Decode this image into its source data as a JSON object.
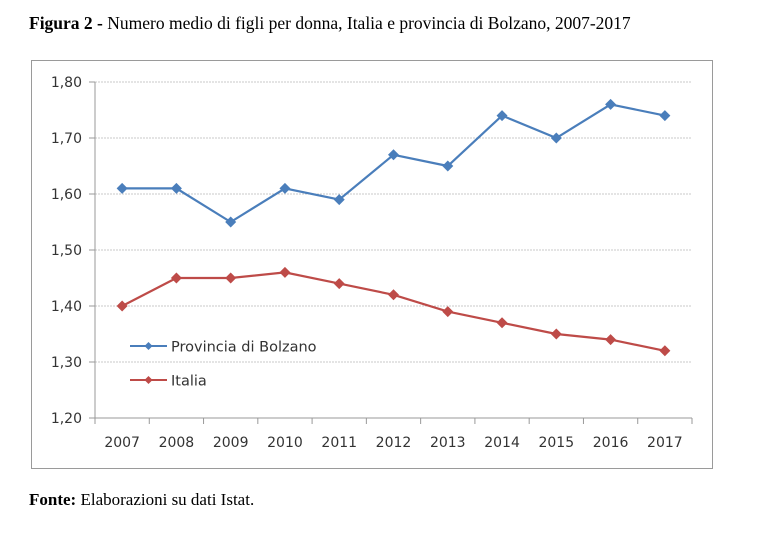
{
  "figure": {
    "title_bold": "Figura 2 -",
    "title_rest": " Numero medio di figli per donna, Italia e provincia di Bolzano, 2007-2017",
    "source_bold": "Fonte:",
    "source_rest": " Elaborazioni su dati Istat."
  },
  "chart_data": {
    "type": "line",
    "title": "Numero medio di figli per donna, Italia e provincia di Bolzano, 2007-2017",
    "xlabel": "",
    "ylabel": "",
    "categories": [
      "2007",
      "2008",
      "2009",
      "2010",
      "2011",
      "2012",
      "2013",
      "2014",
      "2015",
      "2016",
      "2017"
    ],
    "ylim": [
      1.2,
      1.8
    ],
    "yticks": [
      1.2,
      1.3,
      1.4,
      1.5,
      1.6,
      1.7,
      1.8
    ],
    "ytick_labels": [
      "1,20",
      "1,30",
      "1,40",
      "1,50",
      "1,60",
      "1,70",
      "1,80"
    ],
    "grid": true,
    "legend_position": "inside-lower-left",
    "series": [
      {
        "name": "Provincia di Bolzano",
        "color": "#4a7ebb",
        "marker": "diamond",
        "values": [
          1.61,
          1.61,
          1.55,
          1.61,
          1.59,
          1.67,
          1.65,
          1.74,
          1.7,
          1.76,
          1.74
        ]
      },
      {
        "name": "Italia",
        "color": "#be4b48",
        "marker": "diamond",
        "values": [
          1.4,
          1.45,
          1.45,
          1.46,
          1.44,
          1.42,
          1.39,
          1.37,
          1.35,
          1.34,
          1.32
        ]
      }
    ]
  }
}
